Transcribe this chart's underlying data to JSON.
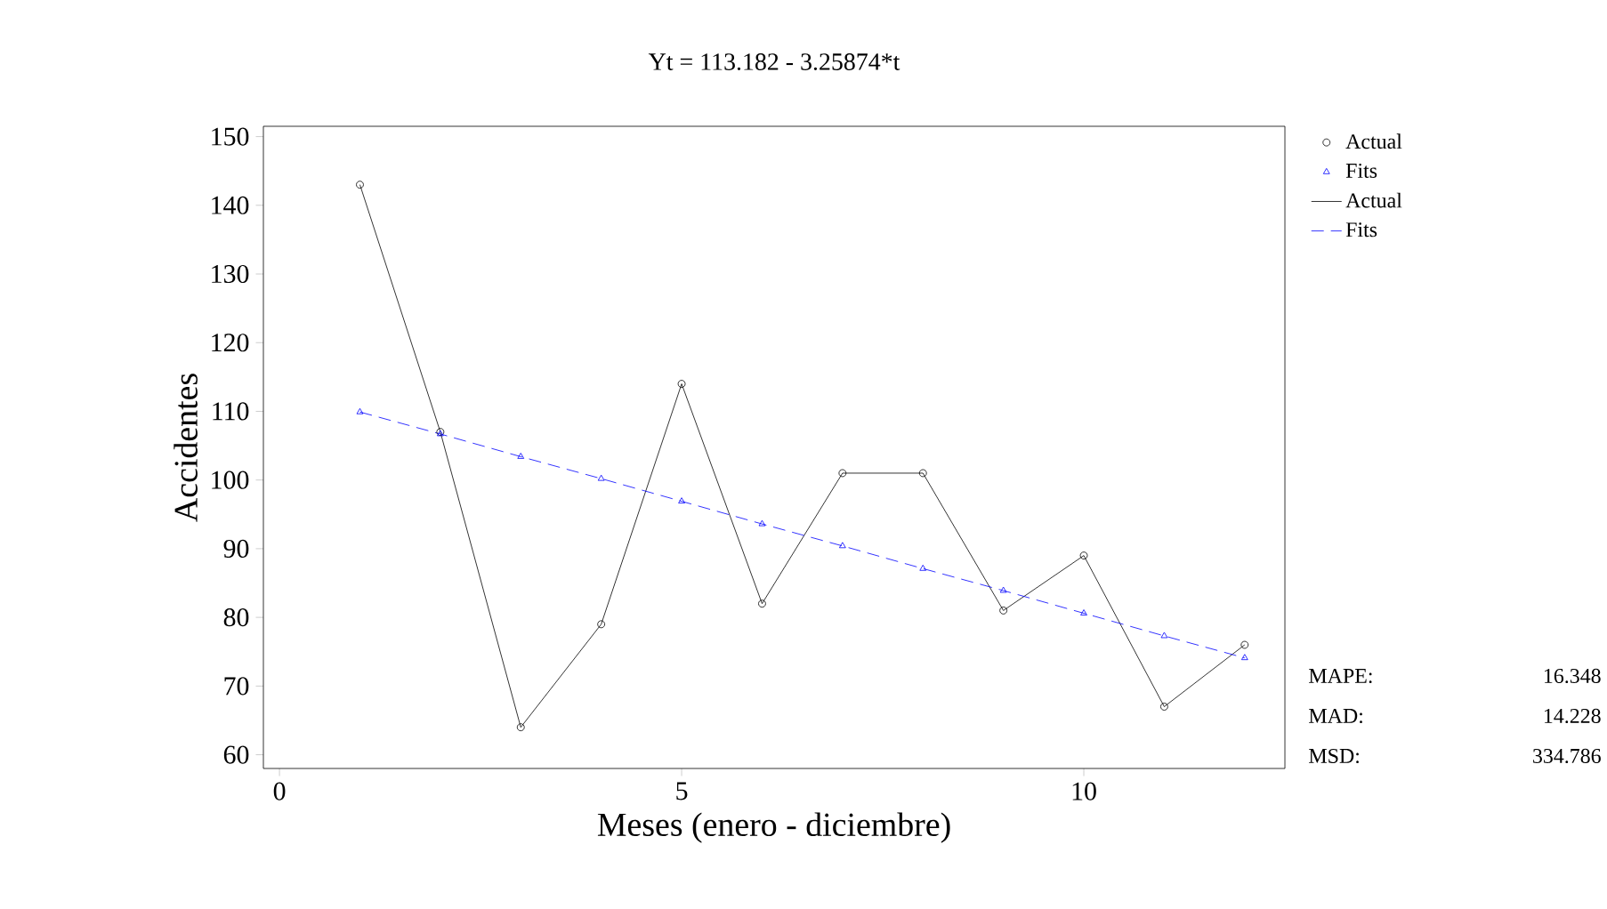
{
  "chart_data": {
    "type": "line",
    "title": "Yt = 113.182 - 3.25874*t",
    "xlabel": "Meses (enero - diciembre)",
    "ylabel": "Accidentes",
    "x": [
      1,
      2,
      3,
      4,
      5,
      6,
      7,
      8,
      9,
      10,
      11,
      12
    ],
    "series": [
      {
        "name": "Actual",
        "color": "#000000",
        "marker": "circle",
        "line_style": "solid",
        "values": [
          143,
          107,
          64,
          79,
          114,
          82,
          101,
          101,
          81,
          89,
          67,
          76
        ]
      },
      {
        "name": "Fits",
        "color": "#0000ff",
        "marker": "triangle",
        "line_style": "dashed",
        "values": [
          109.9,
          106.7,
          103.4,
          100.2,
          96.9,
          93.6,
          90.4,
          87.1,
          83.9,
          80.6,
          77.3,
          74.1
        ]
      }
    ],
    "xlim": [
      -0.2,
      12.5
    ],
    "xticks": [
      0,
      5,
      10
    ],
    "ylim": [
      58,
      151.5
    ],
    "yticks": [
      60,
      70,
      80,
      90,
      100,
      110,
      120,
      130,
      140,
      150
    ],
    "grid": false,
    "legend": "top right",
    "annotations": [
      "MAPE:",
      "16.348",
      "MAD:",
      "14.228",
      "MSD:",
      "334.786"
    ]
  }
}
